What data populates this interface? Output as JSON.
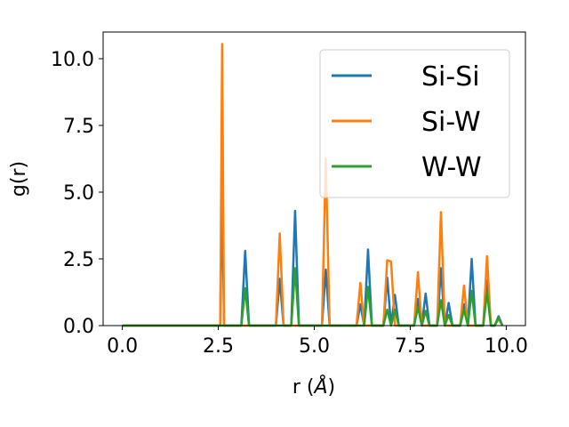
{
  "chart_data": {
    "type": "line",
    "xlabel_text": "r (",
    "xlabel_unit": "Å",
    "xlabel_close": ")",
    "ylabel": "g(r)",
    "xlim": [
      -0.5,
      10.5
    ],
    "ylim": [
      0,
      11
    ],
    "xticks": [
      0.0,
      2.5,
      5.0,
      7.5,
      10.0
    ],
    "xtick_labels": [
      "0.0",
      "2.5",
      "5.0",
      "7.5",
      "10.0"
    ],
    "yticks": [
      0.0,
      2.5,
      5.0,
      7.5,
      10.0
    ],
    "ytick_labels": [
      "0.0",
      "2.5",
      "5.0",
      "7.5",
      "10.0"
    ],
    "grid": false,
    "legend_position": "top-right",
    "x": [
      0.0,
      2.45,
      2.55,
      2.6,
      2.65,
      2.7,
      2.9,
      3.0,
      3.1,
      3.2,
      3.3,
      3.4,
      3.9,
      4.0,
      4.1,
      4.2,
      4.3,
      4.4,
      4.5,
      4.6,
      4.7,
      5.0,
      5.2,
      5.3,
      5.4,
      5.5,
      6.0,
      6.1,
      6.2,
      6.3,
      6.4,
      6.5,
      6.6,
      6.8,
      6.9,
      7.0,
      7.1,
      7.2,
      7.3,
      7.6,
      7.7,
      7.8,
      7.9,
      8.0,
      8.1,
      8.2,
      8.3,
      8.4,
      8.5,
      8.6,
      8.8,
      8.9,
      9.0,
      9.1,
      9.2,
      9.4,
      9.5,
      9.6,
      9.7,
      9.8,
      9.9
    ],
    "series": [
      {
        "name": "Si-Si",
        "color": "#1f77b4",
        "values": [
          0,
          0,
          0,
          5.3,
          0,
          0,
          0,
          0,
          0,
          2.8,
          0,
          0,
          0,
          0,
          1.75,
          0,
          0,
          0,
          4.3,
          0,
          0,
          0,
          0,
          2.1,
          0,
          0,
          0,
          0,
          0.8,
          0,
          2.85,
          0,
          0,
          0,
          1.8,
          0,
          1.15,
          0,
          0,
          0,
          1.0,
          0,
          1.2,
          0,
          0,
          0,
          2.15,
          0,
          0.85,
          0,
          0,
          0.8,
          0,
          2.5,
          0,
          0,
          1.7,
          0,
          0,
          0.35,
          0
        ]
      },
      {
        "name": "Si-W",
        "color": "#ff7f0e",
        "values": [
          0,
          0,
          0,
          10.55,
          0,
          0,
          0,
          0,
          0,
          0,
          0,
          0,
          0,
          0,
          3.45,
          0,
          0,
          0,
          0,
          0,
          0,
          0,
          0,
          6.25,
          0,
          0,
          0,
          0,
          1.6,
          0,
          0,
          0,
          0,
          0,
          2.45,
          2.4,
          0,
          0,
          0,
          0,
          2.0,
          0,
          0,
          0,
          0,
          0,
          4.25,
          0,
          0,
          0,
          0,
          1.5,
          0,
          0,
          0,
          0,
          2.6,
          0,
          0,
          0.25,
          0
        ]
      },
      {
        "name": "W-W",
        "color": "#2ca02c",
        "values": [
          0,
          0,
          0,
          0,
          0,
          0,
          0,
          0,
          0,
          1.4,
          0,
          0,
          0,
          0,
          0,
          0,
          0,
          0,
          2.15,
          0,
          0,
          0,
          0,
          0,
          0,
          0,
          0,
          0,
          0,
          0,
          1.45,
          0,
          0,
          0,
          0.6,
          0,
          0.6,
          0,
          0,
          0,
          0.7,
          0,
          0.55,
          0,
          0,
          0,
          0.95,
          0,
          0.4,
          0,
          0,
          0.6,
          0,
          1.3,
          0,
          0,
          1.25,
          0,
          0,
          0.3,
          0
        ]
      }
    ]
  }
}
